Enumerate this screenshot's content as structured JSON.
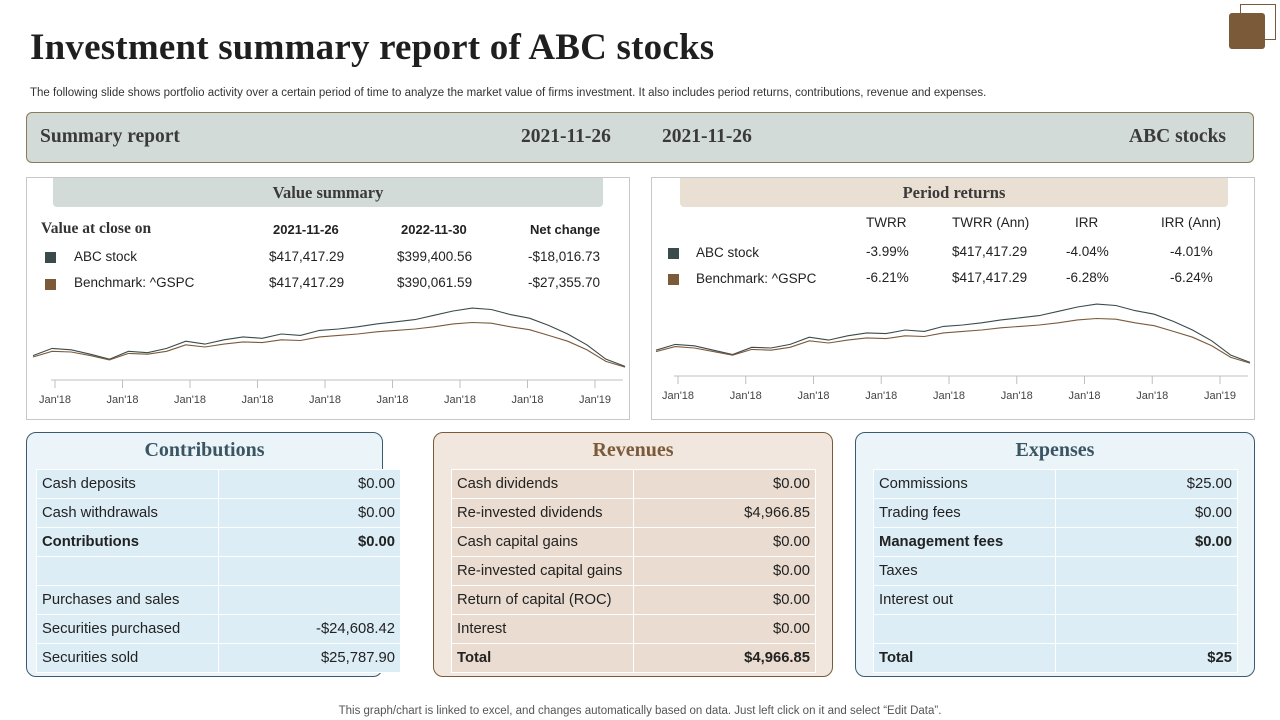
{
  "header": {
    "title": "Investment summary report of ABC stocks",
    "subtitle": "The following slide shows portfolio activity over a certain period of time to analyze the market value of firms investment. It also includes period returns, contributions, revenue and expenses."
  },
  "summary_bar": {
    "label": "Summary report",
    "date1": "2021-11-26",
    "date2": "2021-11-26",
    "stock": "ABC stocks"
  },
  "value_summary": {
    "heading": "Value summary",
    "col_label": "Value at close on",
    "col_date1": "2021-11-26",
    "col_date2": "2022-11-30",
    "col_change": "Net change",
    "rows": [
      {
        "name": "ABC stock",
        "v1": "$417,417.29",
        "v2": "$399,400.56",
        "change": "-$18,016.73"
      },
      {
        "name": "Benchmark: ^GSPC",
        "v1": "$417,417.29",
        "v2": "$390,061.59",
        "change": "-$27,355.70"
      }
    ]
  },
  "period_returns": {
    "heading": "Period returns",
    "cols": [
      "TWRR",
      "TWRR (Ann)",
      "IRR",
      "IRR (Ann)"
    ],
    "rows": [
      {
        "name": "ABC stock",
        "values": [
          "-3.99%",
          "$417,417.29",
          "-4.04%",
          "-4.01%"
        ]
      },
      {
        "name": "Benchmark: ^GSPC",
        "values": [
          "-6.21%",
          "$417,417.29",
          "-6.28%",
          "-6.24%"
        ]
      }
    ]
  },
  "colors": {
    "abc_stock": "#3b4a4b",
    "benchmark": "#7b5a3a",
    "contrib_bg": "#eaf4f9",
    "contrib_cell": "#dcedf6",
    "revenue_bg": "#f2e7de",
    "revenue_cell": "#eadcd0",
    "summary_bar": "#d3dbd9"
  },
  "chart_data": [
    {
      "type": "line",
      "x_tick_labels": [
        "Jan'18",
        "Jan'18",
        "Jan'18",
        "Jan'18",
        "Jan'18",
        "Jan'18",
        "Jan'18",
        "Jan'18",
        "Jan'19"
      ],
      "series": [
        {
          "name": "ABC stock",
          "values": [
            0.2,
            0.3,
            0.28,
            0.22,
            0.15,
            0.26,
            0.24,
            0.3,
            0.4,
            0.36,
            0.42,
            0.46,
            0.44,
            0.5,
            0.48,
            0.55,
            0.57,
            0.6,
            0.64,
            0.67,
            0.7,
            0.76,
            0.82,
            0.86,
            0.84,
            0.77,
            0.72,
            0.62,
            0.5,
            0.35,
            0.15,
            0.05
          ]
        },
        {
          "name": "Benchmark: ^GSPC",
          "values": [
            0.18,
            0.26,
            0.25,
            0.2,
            0.14,
            0.23,
            0.22,
            0.26,
            0.35,
            0.32,
            0.36,
            0.39,
            0.38,
            0.42,
            0.41,
            0.46,
            0.48,
            0.5,
            0.53,
            0.55,
            0.57,
            0.6,
            0.64,
            0.66,
            0.65,
            0.6,
            0.56,
            0.48,
            0.4,
            0.28,
            0.12,
            0.04
          ]
        }
      ]
    },
    {
      "type": "line",
      "x_tick_labels": [
        "Jan'18",
        "Jan'18",
        "Jan'18",
        "Jan'18",
        "Jan'18",
        "Jan'18",
        "Jan'18",
        "Jan'18",
        "Jan'19"
      ],
      "series": [
        {
          "name": "ABC stock",
          "values": [
            0.22,
            0.3,
            0.28,
            0.22,
            0.16,
            0.26,
            0.25,
            0.3,
            0.4,
            0.36,
            0.42,
            0.46,
            0.45,
            0.5,
            0.48,
            0.55,
            0.57,
            0.6,
            0.64,
            0.67,
            0.7,
            0.76,
            0.82,
            0.86,
            0.84,
            0.77,
            0.72,
            0.62,
            0.5,
            0.35,
            0.15,
            0.05
          ]
        },
        {
          "name": "Benchmark: ^GSPC",
          "values": [
            0.2,
            0.27,
            0.25,
            0.2,
            0.15,
            0.23,
            0.22,
            0.26,
            0.35,
            0.32,
            0.36,
            0.39,
            0.38,
            0.42,
            0.41,
            0.46,
            0.48,
            0.5,
            0.53,
            0.55,
            0.57,
            0.6,
            0.64,
            0.66,
            0.65,
            0.6,
            0.56,
            0.48,
            0.4,
            0.28,
            0.12,
            0.04
          ]
        }
      ]
    }
  ],
  "contributions": {
    "title": "Contributions",
    "rows": [
      {
        "label": "Cash deposits",
        "value": "$0.00"
      },
      {
        "label": "Cash withdrawals",
        "value": "$0.00"
      },
      {
        "label": "Contributions",
        "value": "$0.00"
      },
      {
        "label": "",
        "value": ""
      },
      {
        "label": "Purchases and sales",
        "value": ""
      },
      {
        "label": "Securities purchased",
        "value": "-$24,608.42"
      },
      {
        "label": "Securities sold",
        "value": "$25,787.90"
      }
    ]
  },
  "revenues": {
    "title": "Revenues",
    "rows": [
      {
        "label": "Cash dividends",
        "value": "$0.00"
      },
      {
        "label": "Re-invested dividends",
        "value": "$4,966.85"
      },
      {
        "label": "Cash capital gains",
        "value": "$0.00"
      },
      {
        "label": "Re-invested capital gains",
        "value": "$0.00"
      },
      {
        "label": "Return of capital (ROC)",
        "value": "$0.00"
      },
      {
        "label": "Interest",
        "value": "$0.00"
      },
      {
        "label": "Total",
        "value": "$4,966.85"
      }
    ]
  },
  "expenses": {
    "title": "Expenses",
    "rows": [
      {
        "label": "Commissions",
        "value": "$25.00"
      },
      {
        "label": "Trading fees",
        "value": "$0.00"
      },
      {
        "label": "Management fees",
        "value": "$0.00"
      },
      {
        "label": "Taxes",
        "value": ""
      },
      {
        "label": "Interest out",
        "value": ""
      },
      {
        "label": "",
        "value": ""
      },
      {
        "label": "Total",
        "value": "$25"
      }
    ]
  },
  "footer": "This graph/chart is linked to excel, and changes automatically based on data. Just left click on it and select “Edit Data”."
}
